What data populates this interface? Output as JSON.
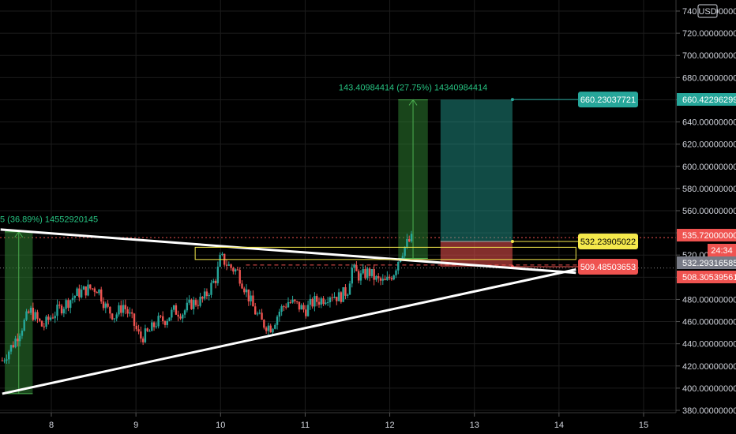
{
  "currency_badge": "USD",
  "chart_data": {
    "type": "candlestick",
    "x_ticks": [
      "8",
      "9",
      "10",
      "11",
      "12",
      "13",
      "14",
      "15"
    ],
    "y_ticks": [
      "740.00000000",
      "720.00000000",
      "700.00000000",
      "680.00000000",
      "660.00000000",
      "640.00000000",
      "620.00000000",
      "600.00000000",
      "580.00000000",
      "560.00000000",
      "540.00000000",
      "520.00000000",
      "500.00000000",
      "480.00000000",
      "460.00000000",
      "440.00000000",
      "420.00000000",
      "400.00000000",
      "380.00000000"
    ],
    "y_range": [
      376,
      744
    ],
    "x_range": [
      7.4,
      15.4
    ],
    "candles_path": [
      [
        7.42,
        425
      ],
      [
        7.55,
        440
      ],
      [
        7.65,
        455
      ],
      [
        7.75,
        470
      ],
      [
        7.9,
        455
      ],
      [
        8.0,
        465
      ],
      [
        8.15,
        475
      ],
      [
        8.3,
        485
      ],
      [
        8.45,
        490
      ],
      [
        8.55,
        490
      ],
      [
        8.65,
        472
      ],
      [
        8.75,
        465
      ],
      [
        8.85,
        475
      ],
      [
        8.95,
        462
      ],
      [
        9.05,
        445
      ],
      [
        9.15,
        450
      ],
      [
        9.25,
        460
      ],
      [
        9.35,
        462
      ],
      [
        9.45,
        470
      ],
      [
        9.55,
        468
      ],
      [
        9.65,
        476
      ],
      [
        9.8,
        480
      ],
      [
        9.95,
        500
      ],
      [
        10.0,
        518
      ],
      [
        10.1,
        510
      ],
      [
        10.2,
        505
      ],
      [
        10.3,
        488
      ],
      [
        10.4,
        470
      ],
      [
        10.5,
        458
      ],
      [
        10.6,
        455
      ],
      [
        10.7,
        470
      ],
      [
        10.8,
        478
      ],
      [
        10.9,
        475
      ],
      [
        11.0,
        470
      ],
      [
        11.1,
        478
      ],
      [
        11.2,
        480
      ],
      [
        11.3,
        485
      ],
      [
        11.4,
        482
      ],
      [
        11.5,
        488
      ],
      [
        11.55,
        508
      ],
      [
        11.65,
        500
      ],
      [
        11.75,
        505
      ],
      [
        11.85,
        497
      ],
      [
        11.95,
        495
      ],
      [
        12.05,
        505
      ],
      [
        12.12,
        520
      ],
      [
        12.2,
        530
      ],
      [
        12.28,
        536
      ]
    ],
    "price_tags": [
      {
        "value": 535.72,
        "label": "535.72000000"
      },
      {
        "value": 532.29316585,
        "label": "532.29316585"
      },
      {
        "value": 508.30539561,
        "label": "508.30539561"
      },
      {
        "value": 660.42296299,
        "label": "660.42296299"
      }
    ],
    "countdown": "24:34",
    "trendline_upper": [
      [
        7.4,
        543
      ],
      [
        14.2,
        504
      ]
    ],
    "trendline_lower": [
      [
        7.42,
        395
      ],
      [
        14.2,
        507
      ]
    ],
    "range_box": {
      "x1": 9.7,
      "x2": 14.2,
      "y1": 516,
      "y2": 527
    },
    "measure_boxes": [
      {
        "x1": 7.45,
        "x2": 7.78,
        "y1": 395,
        "y2": 541,
        "label": "5 (36.89%) 14552920145"
      },
      {
        "x1": 12.1,
        "x2": 12.45,
        "y1": 517,
        "y2": 660,
        "label": "143.40984414 (27.75%) 14340984414"
      }
    ],
    "position": {
      "x1": 12.6,
      "x2": 13.45,
      "entry": 532.23905022,
      "target": 660.23037721,
      "stop": 509.48503653,
      "entry_label": "532.23905022",
      "target_label": "660.23037721",
      "stop_label": "509.48503653"
    },
    "h_lines": [
      {
        "value": 535.72,
        "style": "dotted-red"
      },
      {
        "value": 508.3,
        "style": "dotted-gray"
      },
      {
        "value": 511,
        "style": "dashed-red"
      }
    ],
    "colors": {
      "up": "#26a69a",
      "down": "#ef5350",
      "target": "#26a69a",
      "stop": "#ef5350",
      "entry": "#f5e94c",
      "trend": "#ffffff",
      "measure": "#2e7d32",
      "grid": "#1c1c1c"
    }
  }
}
